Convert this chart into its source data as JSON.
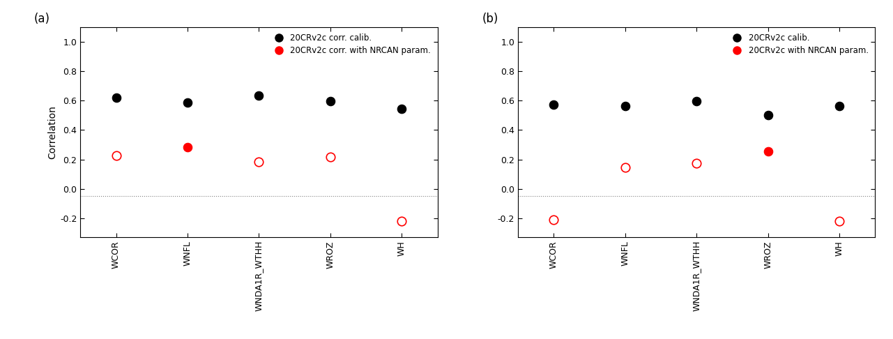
{
  "panel_a": {
    "label": "(a)",
    "categories": [
      "WCOR",
      "WNFL",
      "WNDA1R_WTHH",
      "WROZ",
      "WH"
    ],
    "black_filled": [
      0.62,
      0.585,
      0.635,
      0.595,
      0.545
    ],
    "red_circles": [
      {
        "val": 0.225,
        "filled": false
      },
      {
        "val": 0.285,
        "filled": true
      },
      {
        "val": 0.185,
        "filled": false
      },
      {
        "val": 0.215,
        "filled": false
      },
      {
        "val": -0.22,
        "filled": false
      }
    ],
    "legend1": "20CRv2c corr. calib.",
    "legend2": "20CRv2c corr. with NRCAN param."
  },
  "panel_b": {
    "label": "(b)",
    "categories": [
      "WCOR",
      "WNFL",
      "WNDA1R_WTHH",
      "WROZ",
      "WH"
    ],
    "black_filled": [
      0.575,
      0.565,
      0.595,
      0.5,
      0.565
    ],
    "red_circles": [
      {
        "val": -0.21,
        "filled": false
      },
      {
        "val": 0.145,
        "filled": false
      },
      {
        "val": 0.175,
        "filled": false
      },
      {
        "val": 0.255,
        "filled": true
      },
      {
        "val": -0.22,
        "filled": false
      }
    ],
    "legend1": "20CRv2c calib.",
    "legend2": "20CRv2c with NRCAN param."
  },
  "ylim": [
    -0.33,
    1.1
  ],
  "yticks": [
    -0.2,
    0.0,
    0.2,
    0.4,
    0.6,
    0.8,
    1.0
  ],
  "ytick_labels": [
    "-0.2",
    "0.0",
    "0.2",
    "0.4",
    "0.6",
    "0.8",
    "1.0"
  ],
  "dotted_line_y": -0.05,
  "marker_size": 9,
  "ylabel": "Correlation"
}
